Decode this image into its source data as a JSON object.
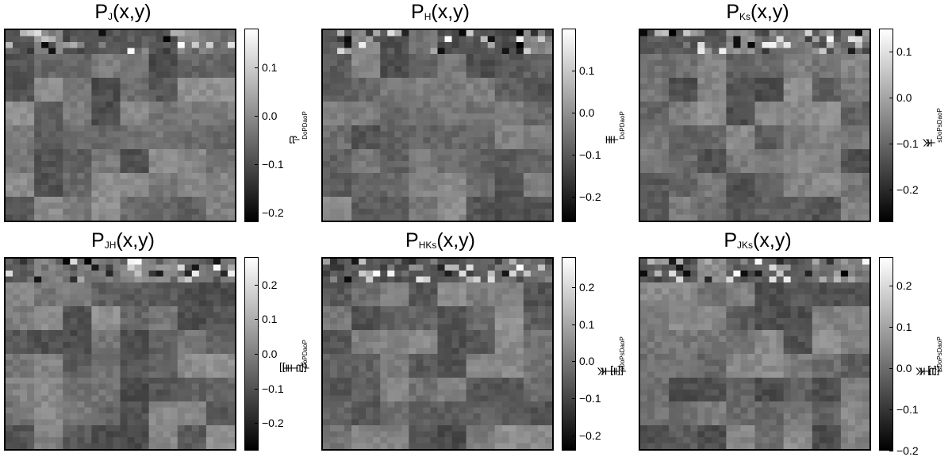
{
  "chart_data": [
    {
      "type": "heatmap",
      "title": {
        "base": "P",
        "sub": "J",
        "rest": "(x,y)"
      },
      "colorbar_label": {
        "parts": [
          [
            "J",
            ""
          ],
          [
            "DoP",
            "sub"
          ],
          [
            "−J",
            ""
          ],
          [
            "DaoP",
            "sub"
          ]
        ]
      },
      "colorbar_range": [
        -0.22,
        0.18
      ],
      "colorbar_ticks": [
        "0.1",
        "0.0",
        "−0.1",
        "−0.2"
      ],
      "colormap": [
        "#000000",
        "#ffffff"
      ],
      "grid": [
        8,
        8
      ],
      "seed": 11
    },
    {
      "type": "heatmap",
      "title": {
        "base": "P",
        "sub": "H",
        "rest": "(x,y)"
      },
      "colorbar_label": {
        "parts": [
          [
            "H",
            ""
          ],
          [
            "DoP",
            "sub"
          ],
          [
            "−H",
            ""
          ],
          [
            "DaoP",
            "sub"
          ]
        ]
      },
      "colorbar_range": [
        -0.26,
        0.2
      ],
      "colorbar_ticks": [
        "0.1",
        "0.0",
        "−0.1",
        "−0.2"
      ],
      "colormap": [
        "#000000",
        "#ffffff"
      ],
      "grid": [
        8,
        8
      ],
      "seed": 23
    },
    {
      "type": "heatmap",
      "title": {
        "base": "P",
        "sub": "Ks",
        "rest": "(x,y)"
      },
      "colorbar_label": {
        "parts": [
          [
            "K",
            ""
          ],
          [
            "sDoP",
            "sub"
          ],
          [
            "−K",
            ""
          ],
          [
            "sDaoP",
            "sub"
          ]
        ]
      },
      "colorbar_range": [
        -0.27,
        0.15
      ],
      "colorbar_ticks": [
        "0.1",
        "0.0",
        "−0.1",
        "−0.2"
      ],
      "colormap": [
        "#000000",
        "#ffffff"
      ],
      "grid": [
        8,
        8
      ],
      "seed": 37
    },
    {
      "type": "heatmap",
      "title": {
        "base": "P",
        "sub": "JH",
        "rest": "(x,y)"
      },
      "colorbar_label": {
        "parts": [
          [
            "[J−H]",
            ""
          ],
          [
            "DoP",
            "sub"
          ],
          [
            "−[J−H]",
            ""
          ],
          [
            "DaoP",
            "sub"
          ]
        ]
      },
      "colorbar_range": [
        -0.28,
        0.28
      ],
      "colorbar_ticks": [
        "0.2",
        "0.1",
        "0.0",
        "−0.1",
        "−0.2"
      ],
      "colormap": [
        "#000000",
        "#ffffff"
      ],
      "grid": [
        8,
        8
      ],
      "seed": 41
    },
    {
      "type": "heatmap",
      "title": {
        "base": "P",
        "sub": "HKs",
        "rest": "(x,y)"
      },
      "colorbar_label": {
        "parts": [
          [
            "[H−K",
            ""
          ],
          [
            "s",
            "sub"
          ],
          [
            "]",
            ""
          ],
          [
            "DoP",
            "sub"
          ],
          [
            "−[H−K",
            ""
          ],
          [
            "s",
            "sub"
          ],
          [
            "]",
            ""
          ],
          [
            "DaoP",
            "sub"
          ]
        ]
      },
      "colorbar_range": [
        -0.24,
        0.28
      ],
      "colorbar_ticks": [
        "0.2",
        "0.1",
        "0.0",
        "−0.1",
        "−0.2"
      ],
      "colormap": [
        "#000000",
        "#ffffff"
      ],
      "grid": [
        8,
        8
      ],
      "seed": 53
    },
    {
      "type": "heatmap",
      "title": {
        "base": "P",
        "sub": "JKs",
        "rest": "(x,y)"
      },
      "colorbar_label": {
        "parts": [
          [
            "[J−K",
            ""
          ],
          [
            "s",
            "sub"
          ],
          [
            "]",
            ""
          ],
          [
            "DoP",
            "sub"
          ],
          [
            "−[J−K",
            ""
          ],
          [
            "s",
            "sub"
          ],
          [
            "]",
            ""
          ],
          [
            "DaoP",
            "sub"
          ]
        ]
      },
      "colorbar_range": [
        -0.2,
        0.27
      ],
      "colorbar_ticks": [
        "0.2",
        "0.1",
        "0.0",
        "−0.1",
        "−0.2"
      ],
      "colormap": [
        "#000000",
        "#ffffff"
      ],
      "grid": [
        8,
        8
      ],
      "seed": 67
    }
  ]
}
